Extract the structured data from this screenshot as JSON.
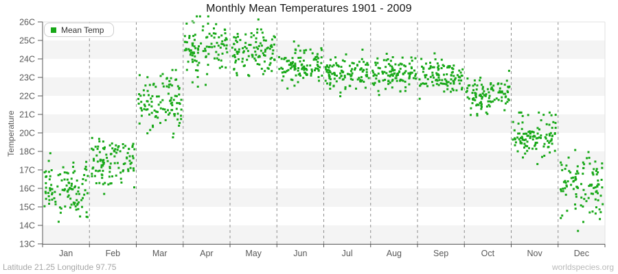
{
  "header": {
    "title": "Monthly Mean Temperatures 1901 - 2009"
  },
  "legend": {
    "label": "Mean Temp",
    "position": "top-left"
  },
  "footer": {
    "left": "Latitude 21.25 Longitude 97.75",
    "right": "worldspecies.org"
  },
  "colors": {
    "point_green": "#18a818",
    "gridline": "#8c8c8c",
    "axis_line": "#555555",
    "outer_border": "#e0e0e0",
    "band_gray": "#f4f4f4",
    "band_white": "#ffffff",
    "tick_label": "#595959",
    "title_text": "#141414"
  },
  "chart_data": {
    "type": "scatter",
    "title": "Monthly Mean Temperatures 1901 - 2009",
    "xlabel": "",
    "ylabel": "Temperature",
    "years_range": "1901 - 2009",
    "points_per_month": 109,
    "x_categories": [
      "Jan",
      "Feb",
      "Mar",
      "Apr",
      "May",
      "Jun",
      "Jul",
      "Aug",
      "Sep",
      "Oct",
      "Nov",
      "Dec"
    ],
    "y_ticks": [
      {
        "label": "26C",
        "value": 26
      },
      {
        "label": "25C",
        "value": 25
      },
      {
        "label": "24C",
        "value": 24
      },
      {
        "label": "23C",
        "value": 23
      },
      {
        "label": "22C",
        "value": 22
      },
      {
        "label": "21C",
        "value": 21
      },
      {
        "label": "20C",
        "value": 20
      },
      {
        "label": "18C",
        "value": 18
      },
      {
        "label": "17C",
        "value": 17
      },
      {
        "label": "16C",
        "value": 16
      },
      {
        "label": "15C",
        "value": 15
      },
      {
        "label": "14C",
        "value": 14
      },
      {
        "label": "13C",
        "value": 13
      }
    ],
    "y_axis_note": "13 evenly spaced tick labels; 19C label is absent so the 20C-18C interval spans two degrees",
    "grid": {
      "vertical_dashed_month_separators": true,
      "alternating_horizontal_bands": true
    },
    "legend_position": "top-left",
    "series": [
      {
        "name": "Mean Temp",
        "color": "#18a818",
        "marker": "square",
        "marker_size_px": 3,
        "monthly_distributions": [
          {
            "month": "Jan",
            "mean": 15.9,
            "sd": 0.8,
            "min": 14.0,
            "max": 17.9
          },
          {
            "month": "Feb",
            "mean": 17.5,
            "sd": 0.75,
            "min": 15.7,
            "max": 19.8
          },
          {
            "month": "Mar",
            "mean": 21.5,
            "sd": 0.85,
            "min": 18.8,
            "max": 23.4
          },
          {
            "month": "Apr",
            "mean": 24.5,
            "sd": 0.7,
            "min": 22.5,
            "max": 26.3
          },
          {
            "month": "May",
            "mean": 24.3,
            "sd": 0.7,
            "min": 22.3,
            "max": 26.3
          },
          {
            "month": "Jun",
            "mean": 23.7,
            "sd": 0.5,
            "min": 22.4,
            "max": 25.2
          },
          {
            "month": "Jul",
            "mean": 23.2,
            "sd": 0.45,
            "min": 21.9,
            "max": 24.6
          },
          {
            "month": "Aug",
            "mean": 23.2,
            "sd": 0.45,
            "min": 21.9,
            "max": 24.5
          },
          {
            "month": "Sep",
            "mean": 23.0,
            "sd": 0.5,
            "min": 21.5,
            "max": 24.5
          },
          {
            "month": "Oct",
            "mean": 22.1,
            "sd": 0.5,
            "min": 20.9,
            "max": 23.7
          },
          {
            "month": "Nov",
            "mean": 19.6,
            "sd": 0.8,
            "min": 16.6,
            "max": 21.1
          },
          {
            "month": "Dec",
            "mean": 16.2,
            "sd": 0.9,
            "min": 13.7,
            "max": 18.3
          }
        ]
      }
    ]
  }
}
